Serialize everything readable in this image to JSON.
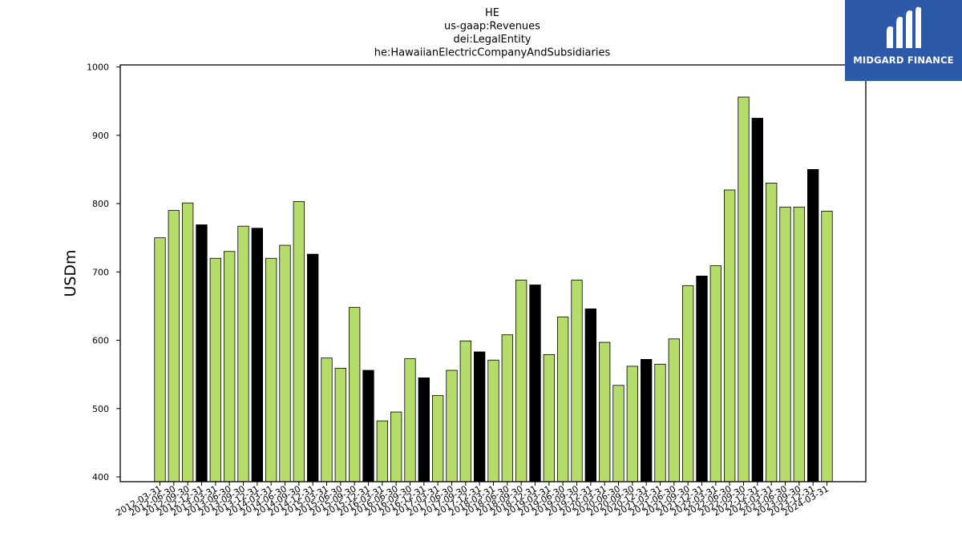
{
  "chart_data": {
    "type": "bar",
    "title": [
      "HE",
      "us-gaap:Revenues",
      "dei:LegalEntity",
      "he:HawaiianElectricCompanyAndSubsidiaries"
    ],
    "xlabel": "",
    "ylabel": "USDm",
    "ylim": [
      393,
      1003
    ],
    "yticks": [
      400,
      500,
      600,
      700,
      800,
      900,
      1000
    ],
    "grid": false,
    "colors": {
      "quarter": "#b5dc6a",
      "year_end": "#000000",
      "edge": "#000000"
    },
    "categories": [
      "2012-03-31",
      "2012-06-30",
      "2012-09-30",
      "2012-12-31",
      "2013-03-31",
      "2013-06-30",
      "2013-09-30",
      "2013-12-31",
      "2014-03-31",
      "2014-06-30",
      "2014-09-30",
      "2014-12-31",
      "2015-03-31",
      "2015-06-30",
      "2015-09-30",
      "2015-12-31",
      "2016-03-31",
      "2016-06-30",
      "2016-09-30",
      "2016-12-31",
      "2017-03-31",
      "2017-06-30",
      "2017-09-30",
      "2017-12-31",
      "2018-03-31",
      "2018-06-30",
      "2018-09-30",
      "2018-12-31",
      "2019-03-31",
      "2019-06-30",
      "2019-09-30",
      "2019-12-31",
      "2020-03-31",
      "2020-06-30",
      "2020-09-30",
      "2020-12-31",
      "2021-03-31",
      "2021-06-30",
      "2021-09-30",
      "2021-12-31",
      "2022-03-31",
      "2022-06-30",
      "2022-09-30",
      "2022-12-31",
      "2023-03-31",
      "2023-06-30",
      "2023-09-30",
      "2023-12-31",
      "2024-03-31"
    ],
    "values": [
      750,
      790,
      801,
      769,
      720,
      730,
      767,
      764,
      720,
      739,
      803,
      726,
      574,
      559,
      648,
      556,
      482,
      495,
      573,
      545,
      519,
      556,
      599,
      583,
      571,
      608,
      688,
      681,
      579,
      634,
      688,
      646,
      597,
      534,
      562,
      572,
      565,
      602,
      680,
      694,
      709,
      820,
      956,
      925,
      830,
      795,
      795,
      850,
      789
    ]
  },
  "logo": {
    "text": "MIDGARD FINANCE"
  }
}
